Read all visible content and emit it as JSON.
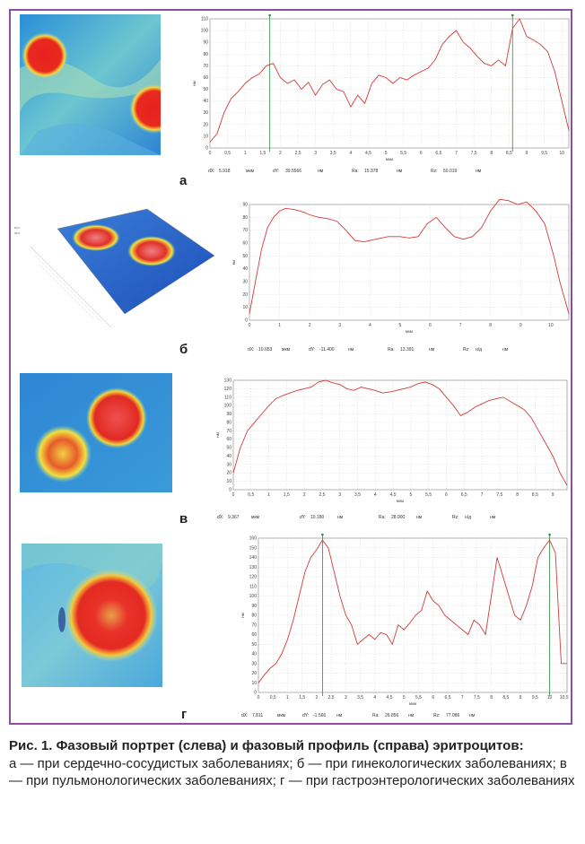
{
  "panels": [
    {
      "letter": "а",
      "chart_data": {
        "type": "line",
        "title": "",
        "xlabel": "мкм",
        "ylabel": "нм",
        "xlim": [
          0,
          10.2
        ],
        "ylim": [
          0,
          110
        ],
        "xticks": [
          "0",
          "0,5",
          "1",
          "1,5",
          "2",
          "2,5",
          "3",
          "3,5",
          "4",
          "4,5",
          "5",
          "5,5",
          "6",
          "6,5",
          "7",
          "7,5",
          "8",
          "8,5",
          "9",
          "9,5",
          "10"
        ],
        "yticks": [
          "0",
          "10",
          "20",
          "30",
          "40",
          "50",
          "60",
          "70",
          "80",
          "90",
          "100",
          "110"
        ],
        "markers": [
          1.7,
          8.6
        ],
        "series": [
          {
            "color": "#d23b3b",
            "x": [
              0,
              0.2,
              0.4,
              0.6,
              0.8,
              1.0,
              1.2,
              1.4,
              1.6,
              1.8,
              2.0,
              2.2,
              2.4,
              2.6,
              2.8,
              3.0,
              3.2,
              3.4,
              3.6,
              3.8,
              4.0,
              4.2,
              4.4,
              4.6,
              4.8,
              5.0,
              5.2,
              5.4,
              5.6,
              5.8,
              6.0,
              6.2,
              6.4,
              6.6,
              6.8,
              7.0,
              7.2,
              7.4,
              7.6,
              7.8,
              8.0,
              8.2,
              8.4,
              8.6,
              8.8,
              9.0,
              9.2,
              9.4,
              9.6,
              9.8,
              10.0,
              10.2
            ],
            "y": [
              5,
              12,
              30,
              42,
              48,
              55,
              60,
              63,
              70,
              72,
              60,
              55,
              58,
              50,
              56,
              45,
              54,
              58,
              50,
              48,
              35,
              45,
              38,
              55,
              62,
              60,
              55,
              60,
              58,
              62,
              65,
              68,
              75,
              88,
              95,
              100,
              90,
              85,
              78,
              72,
              70,
              75,
              70,
              102,
              110,
              95,
              92,
              88,
              82,
              65,
              40,
              15
            ]
          }
        ]
      },
      "stats": {
        "dx_label": "dX:",
        "dx": "5.918",
        "dx_unit": "мкм",
        "dy_label": "dY:",
        "dy": "39.5566",
        "dy_unit": "нм",
        "ra_label": "Ra:",
        "ra": "15.378",
        "ra_unit": "нм",
        "rz_label": "Rz:",
        "rz": "50.019",
        "rz_unit": "нм"
      }
    },
    {
      "letter": "б",
      "chart_data": {
        "type": "line",
        "title": "",
        "xlabel": "мкм",
        "ylabel": "нм",
        "xlim": [
          0,
          10.6
        ],
        "ylim": [
          0,
          90
        ],
        "xticks": [
          "0",
          "1",
          "2",
          "3",
          "4",
          "5",
          "6",
          "7",
          "8",
          "9",
          "10"
        ],
        "yticks": [
          "0",
          "10",
          "20",
          "30",
          "40",
          "50",
          "60",
          "70",
          "80",
          "90"
        ],
        "markers": [],
        "series": [
          {
            "color": "#d23b3b",
            "x": [
              0,
              0.2,
              0.4,
              0.6,
              0.8,
              1.0,
              1.2,
              1.5,
              1.8,
              2.0,
              2.3,
              2.6,
              2.9,
              3.2,
              3.5,
              3.8,
              4.2,
              4.6,
              5.0,
              5.3,
              5.6,
              5.9,
              6.2,
              6.5,
              6.8,
              7.1,
              7.4,
              7.7,
              8.0,
              8.3,
              8.6,
              8.9,
              9.2,
              9.5,
              9.8,
              10.1,
              10.3,
              10.6
            ],
            "y": [
              5,
              30,
              55,
              72,
              80,
              85,
              87,
              86,
              84,
              82,
              80,
              79,
              77,
              70,
              62,
              61,
              63,
              65,
              65,
              64,
              65,
              75,
              80,
              72,
              65,
              63,
              65,
              72,
              85,
              94,
              93,
              90,
              92,
              85,
              75,
              50,
              30,
              5
            ]
          }
        ]
      },
      "stats": {
        "dx_label": "dX:",
        "dx": "10.653",
        "dx_unit": "мкм",
        "dy_label": "dY:",
        "dy": "-11.400",
        "dy_unit": "нм",
        "ra_label": "Ra:",
        "ra": "13.391",
        "ra_unit": "нм",
        "rz_label": "Rz:",
        "rz": "н/д",
        "rz_unit": "нм"
      }
    },
    {
      "letter": "в",
      "chart_data": {
        "type": "line",
        "title": "",
        "xlabel": "мкм",
        "ylabel": "нм",
        "xlim": [
          0,
          9.4
        ],
        "ylim": [
          0,
          130
        ],
        "xticks": [
          "0",
          "0,5",
          "1",
          "1,5",
          "2",
          "2,5",
          "3",
          "3,5",
          "4",
          "4,5",
          "5",
          "5,5",
          "6",
          "6,5",
          "7",
          "7,5",
          "8",
          "8,5",
          "9"
        ],
        "yticks": [
          "0",
          "10",
          "20",
          "30",
          "40",
          "50",
          "60",
          "70",
          "80",
          "90",
          "100",
          "110",
          "120",
          "130"
        ],
        "markers": [],
        "series": [
          {
            "color": "#d23b3b",
            "x": [
              0,
              0.2,
              0.4,
              0.6,
              0.8,
              1.0,
              1.2,
              1.4,
              1.6,
              1.8,
              2.0,
              2.2,
              2.4,
              2.6,
              2.8,
              3.0,
              3.2,
              3.4,
              3.6,
              3.8,
              4.0,
              4.2,
              4.4,
              4.6,
              4.8,
              5.0,
              5.2,
              5.4,
              5.6,
              5.8,
              6.0,
              6.2,
              6.4,
              6.6,
              6.8,
              7.0,
              7.2,
              7.4,
              7.6,
              7.8,
              8.0,
              8.2,
              8.4,
              8.6,
              8.8,
              9.0,
              9.2,
              9.4
            ],
            "y": [
              20,
              50,
              70,
              80,
              90,
              100,
              108,
              112,
              115,
              118,
              120,
              122,
              128,
              130,
              127,
              125,
              120,
              118,
              122,
              120,
              118,
              115,
              116,
              118,
              120,
              122,
              126,
              128,
              125,
              120,
              110,
              100,
              88,
              92,
              98,
              102,
              106,
              108,
              110,
              105,
              100,
              95,
              85,
              70,
              55,
              40,
              20,
              5
            ]
          }
        ]
      },
      "stats": {
        "dx_label": "dX:",
        "dx": "9.367",
        "dx_unit": "мкм",
        "dy_label": "dY:",
        "dy": "10.180",
        "dy_unit": "нм",
        "ra_label": "Ra:",
        "ra": "28.000",
        "ra_unit": "нм",
        "rz_label": "Rz:",
        "rz": "н/д",
        "rz_unit": "нм"
      }
    },
    {
      "letter": "г",
      "chart_data": {
        "type": "line",
        "title": "",
        "xlabel": "мкм",
        "ylabel": "нм",
        "xlim": [
          0,
          10.6
        ],
        "ylim": [
          0,
          160
        ],
        "xticks": [
          "0",
          "0,5",
          "1",
          "1,5",
          "2",
          "2,5",
          "3",
          "3,5",
          "4",
          "4,5",
          "5",
          "5,5",
          "6",
          "6,5",
          "7",
          "7,5",
          "8",
          "8,5",
          "9",
          "9,5",
          "10",
          "10,5"
        ],
        "yticks": [
          "0",
          "10",
          "20",
          "30",
          "40",
          "50",
          "60",
          "70",
          "80",
          "90",
          "100",
          "110",
          "120",
          "130",
          "140",
          "150",
          "160"
        ],
        "markers": [
          2.2,
          10.0
        ],
        "series": [
          {
            "color": "#d23b3b",
            "x": [
              0,
              0.2,
              0.4,
              0.6,
              0.8,
              1.0,
              1.2,
              1.4,
              1.6,
              1.8,
              2.0,
              2.2,
              2.4,
              2.6,
              2.8,
              3.0,
              3.2,
              3.4,
              3.6,
              3.8,
              4.0,
              4.2,
              4.4,
              4.6,
              4.8,
              5.0,
              5.2,
              5.4,
              5.6,
              5.8,
              6.0,
              6.2,
              6.4,
              6.6,
              6.8,
              7.0,
              7.2,
              7.4,
              7.6,
              7.8,
              8.0,
              8.2,
              8.4,
              8.6,
              8.8,
              9.0,
              9.2,
              9.4,
              9.6,
              9.8,
              10.0,
              10.2,
              10.4,
              10.6
            ],
            "y": [
              10,
              18,
              25,
              30,
              40,
              55,
              75,
              100,
              125,
              140,
              148,
              158,
              150,
              125,
              100,
              80,
              70,
              50,
              55,
              60,
              55,
              62,
              60,
              50,
              70,
              65,
              72,
              80,
              85,
              105,
              95,
              90,
              80,
              75,
              70,
              65,
              60,
              75,
              70,
              60,
              100,
              140,
              120,
              100,
              80,
              75,
              90,
              110,
              140,
              150,
              158,
              145,
              30,
              30
            ]
          }
        ]
      },
      "stats": {
        "dx_label": "dX:",
        "dx": "7.811",
        "dx_unit": "мкм",
        "dy_label": "dY:",
        "dy": "-1.566",
        "dy_unit": "нм",
        "ra_label": "Ra:",
        "ra": "26.856",
        "ra_unit": "нм",
        "rz_label": "Rz:",
        "rz": "77.086",
        "rz_unit": "нм"
      }
    }
  ],
  "caption": {
    "title": "Рис. 1. Фазовый портрет (слева) и фазовый профиль (справа) эритроцитов:",
    "body": "а — при сердечно-сосудистых заболеваниях; б — при гинекологических заболеваниях; в — при пульмонологических заболеваниях; г — при гастроэнтерологических заболеваниях"
  }
}
